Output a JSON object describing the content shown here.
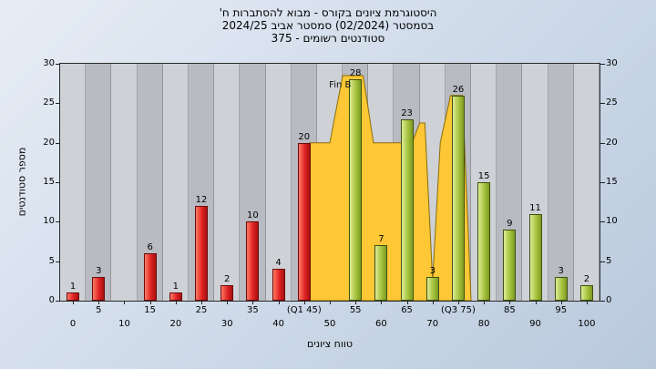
{
  "title": {
    "line1": "היסטוגרמת ציונים בקורס - מבוא להסתברות ח'",
    "line2": "בסמסטר (02/2024) סמסטר אביב 2024/25",
    "line3": "סטודנטים רשומים - 375"
  },
  "axes": {
    "y_label": "מספר סטודנטים",
    "x_label": "טווח ציונים"
  },
  "chart_data": {
    "type": "bar",
    "title": "היסטוגרמת ציונים בקורס - מבוא להסתברות ח' בסמסטר (02/2024) סמסטר אביב 2024/25, סטודנטים רשומים - 375",
    "xlabel": "טווח ציונים",
    "ylabel": "מספר סטודנטים",
    "ylim": [
      0,
      30
    ],
    "y_ticks": [
      0,
      5,
      10,
      15,
      20,
      25,
      30
    ],
    "grid": "vertical-stripes",
    "categories": [
      "0",
      "5",
      "10",
      "15",
      "20",
      "25",
      "30",
      "35",
      "40",
      "(Q1 45)",
      "50",
      "55",
      "60",
      "65",
      "70",
      "(Q3 75)",
      "80",
      "85",
      "90",
      "95",
      "100"
    ],
    "values": [
      1,
      3,
      0,
      6,
      1,
      12,
      2,
      10,
      4,
      20,
      0,
      28,
      7,
      23,
      3,
      26,
      15,
      9,
      11,
      3,
      2
    ],
    "bar_groups": [
      "low",
      "low",
      "low",
      "low",
      "low",
      "low",
      "low",
      "low",
      "low",
      "low",
      "low",
      "high",
      "high",
      "high",
      "high",
      "high",
      "high",
      "high",
      "high",
      "high",
      "high"
    ],
    "colors": {
      "low_bar": "#e02323",
      "high_bar": "#a6c43e",
      "area": "#fdc735",
      "area_stroke": "#8a6d0a"
    },
    "annotation": {
      "text": "Fin B",
      "x": 52,
      "y": 28
    },
    "area_overlay": {
      "points": [
        [
          46,
          0
        ],
        [
          46,
          20
        ],
        [
          50,
          20
        ],
        [
          52.5,
          28.5
        ],
        [
          56.5,
          28.5
        ],
        [
          58.5,
          20
        ],
        [
          66,
          20
        ],
        [
          67.5,
          22.5
        ],
        [
          68.5,
          22.5
        ],
        [
          70,
          2.5
        ],
        [
          71.5,
          20
        ],
        [
          73.5,
          26
        ],
        [
          75.8,
          26
        ],
        [
          77,
          8
        ],
        [
          77.5,
          0
        ]
      ]
    }
  }
}
